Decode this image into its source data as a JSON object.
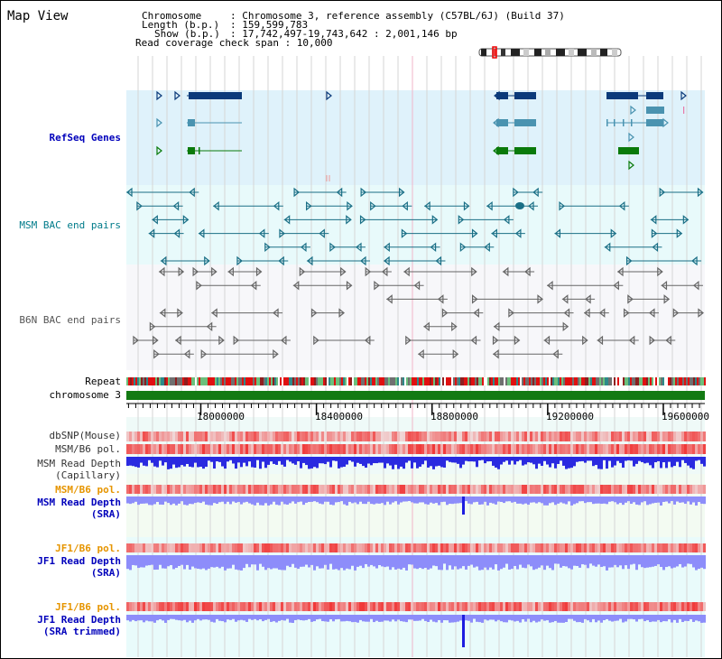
{
  "title": "Map View",
  "info": {
    "chromosome_key": "Chromosome",
    "chromosome_val": ": Chromosome 3, reference assembly (C57BL/6J) (Build 37)",
    "length_key": "Length (b.p.)",
    "length_val": ": 159,599,783",
    "show_key": "Show (b.p.)",
    "show_val": ": 17,742,497-19,743,642 : 2,001,146 bp",
    "coverage": "Read coverage check span : 10,000"
  },
  "tracks": {
    "refseq": "RefSeq Genes",
    "msm_bac": "MSM BAC end pairs",
    "b6n_bac": "B6N BAC end pairs",
    "repeat": "Repeat",
    "chromosome": "chromosome 3",
    "dbsnp": "dbSNP(Mouse)",
    "msm_b6_pol_1": "MSM/B6 pol.",
    "msm_depth_cap_1": "MSM Read Depth",
    "msm_depth_cap_2": "(Capillary)",
    "msm_b6_pol_2": "MSM/B6 pol.",
    "msm_depth_sra_1": "MSM Read Depth",
    "msm_depth_sra_2": "(SRA)",
    "jf1_b6_pol_1": "JF1/B6 pol.",
    "jf1_depth_sra_1": "JF1 Read Depth",
    "jf1_depth_sra_2": "(SRA)",
    "jf1_b6_pol_2": "JF1/B6 pol.",
    "jf1_depth_trim_1": "JF1 Read Depth",
    "jf1_depth_trim_2": "(SRA trimmed)"
  },
  "axis": {
    "range_bp": [
      17742497,
      19743642
    ],
    "ticks": [
      {
        "pos": 18000000,
        "label": "18000000"
      },
      {
        "pos": 18400000,
        "label": "18400000"
      },
      {
        "pos": 18800000,
        "label": "18800000"
      },
      {
        "pos": 19200000,
        "label": "19200000"
      },
      {
        "pos": 19600000,
        "label": "19600000"
      }
    ]
  },
  "colors": {
    "refseq_bg": "#dff2fb",
    "msm_bg": "#e8fafb",
    "b6n_bg": "#f7f7fa",
    "navy": "#0b3a7a",
    "teal": "#4a93b0",
    "green": "#0a7a0a",
    "bac_msm": "#1a6f86",
    "bac_b6n": "#666666",
    "chrom": "#137a13",
    "depth_blue": "#2a2ae0",
    "depth_light": "#8d8dfa"
  }
}
